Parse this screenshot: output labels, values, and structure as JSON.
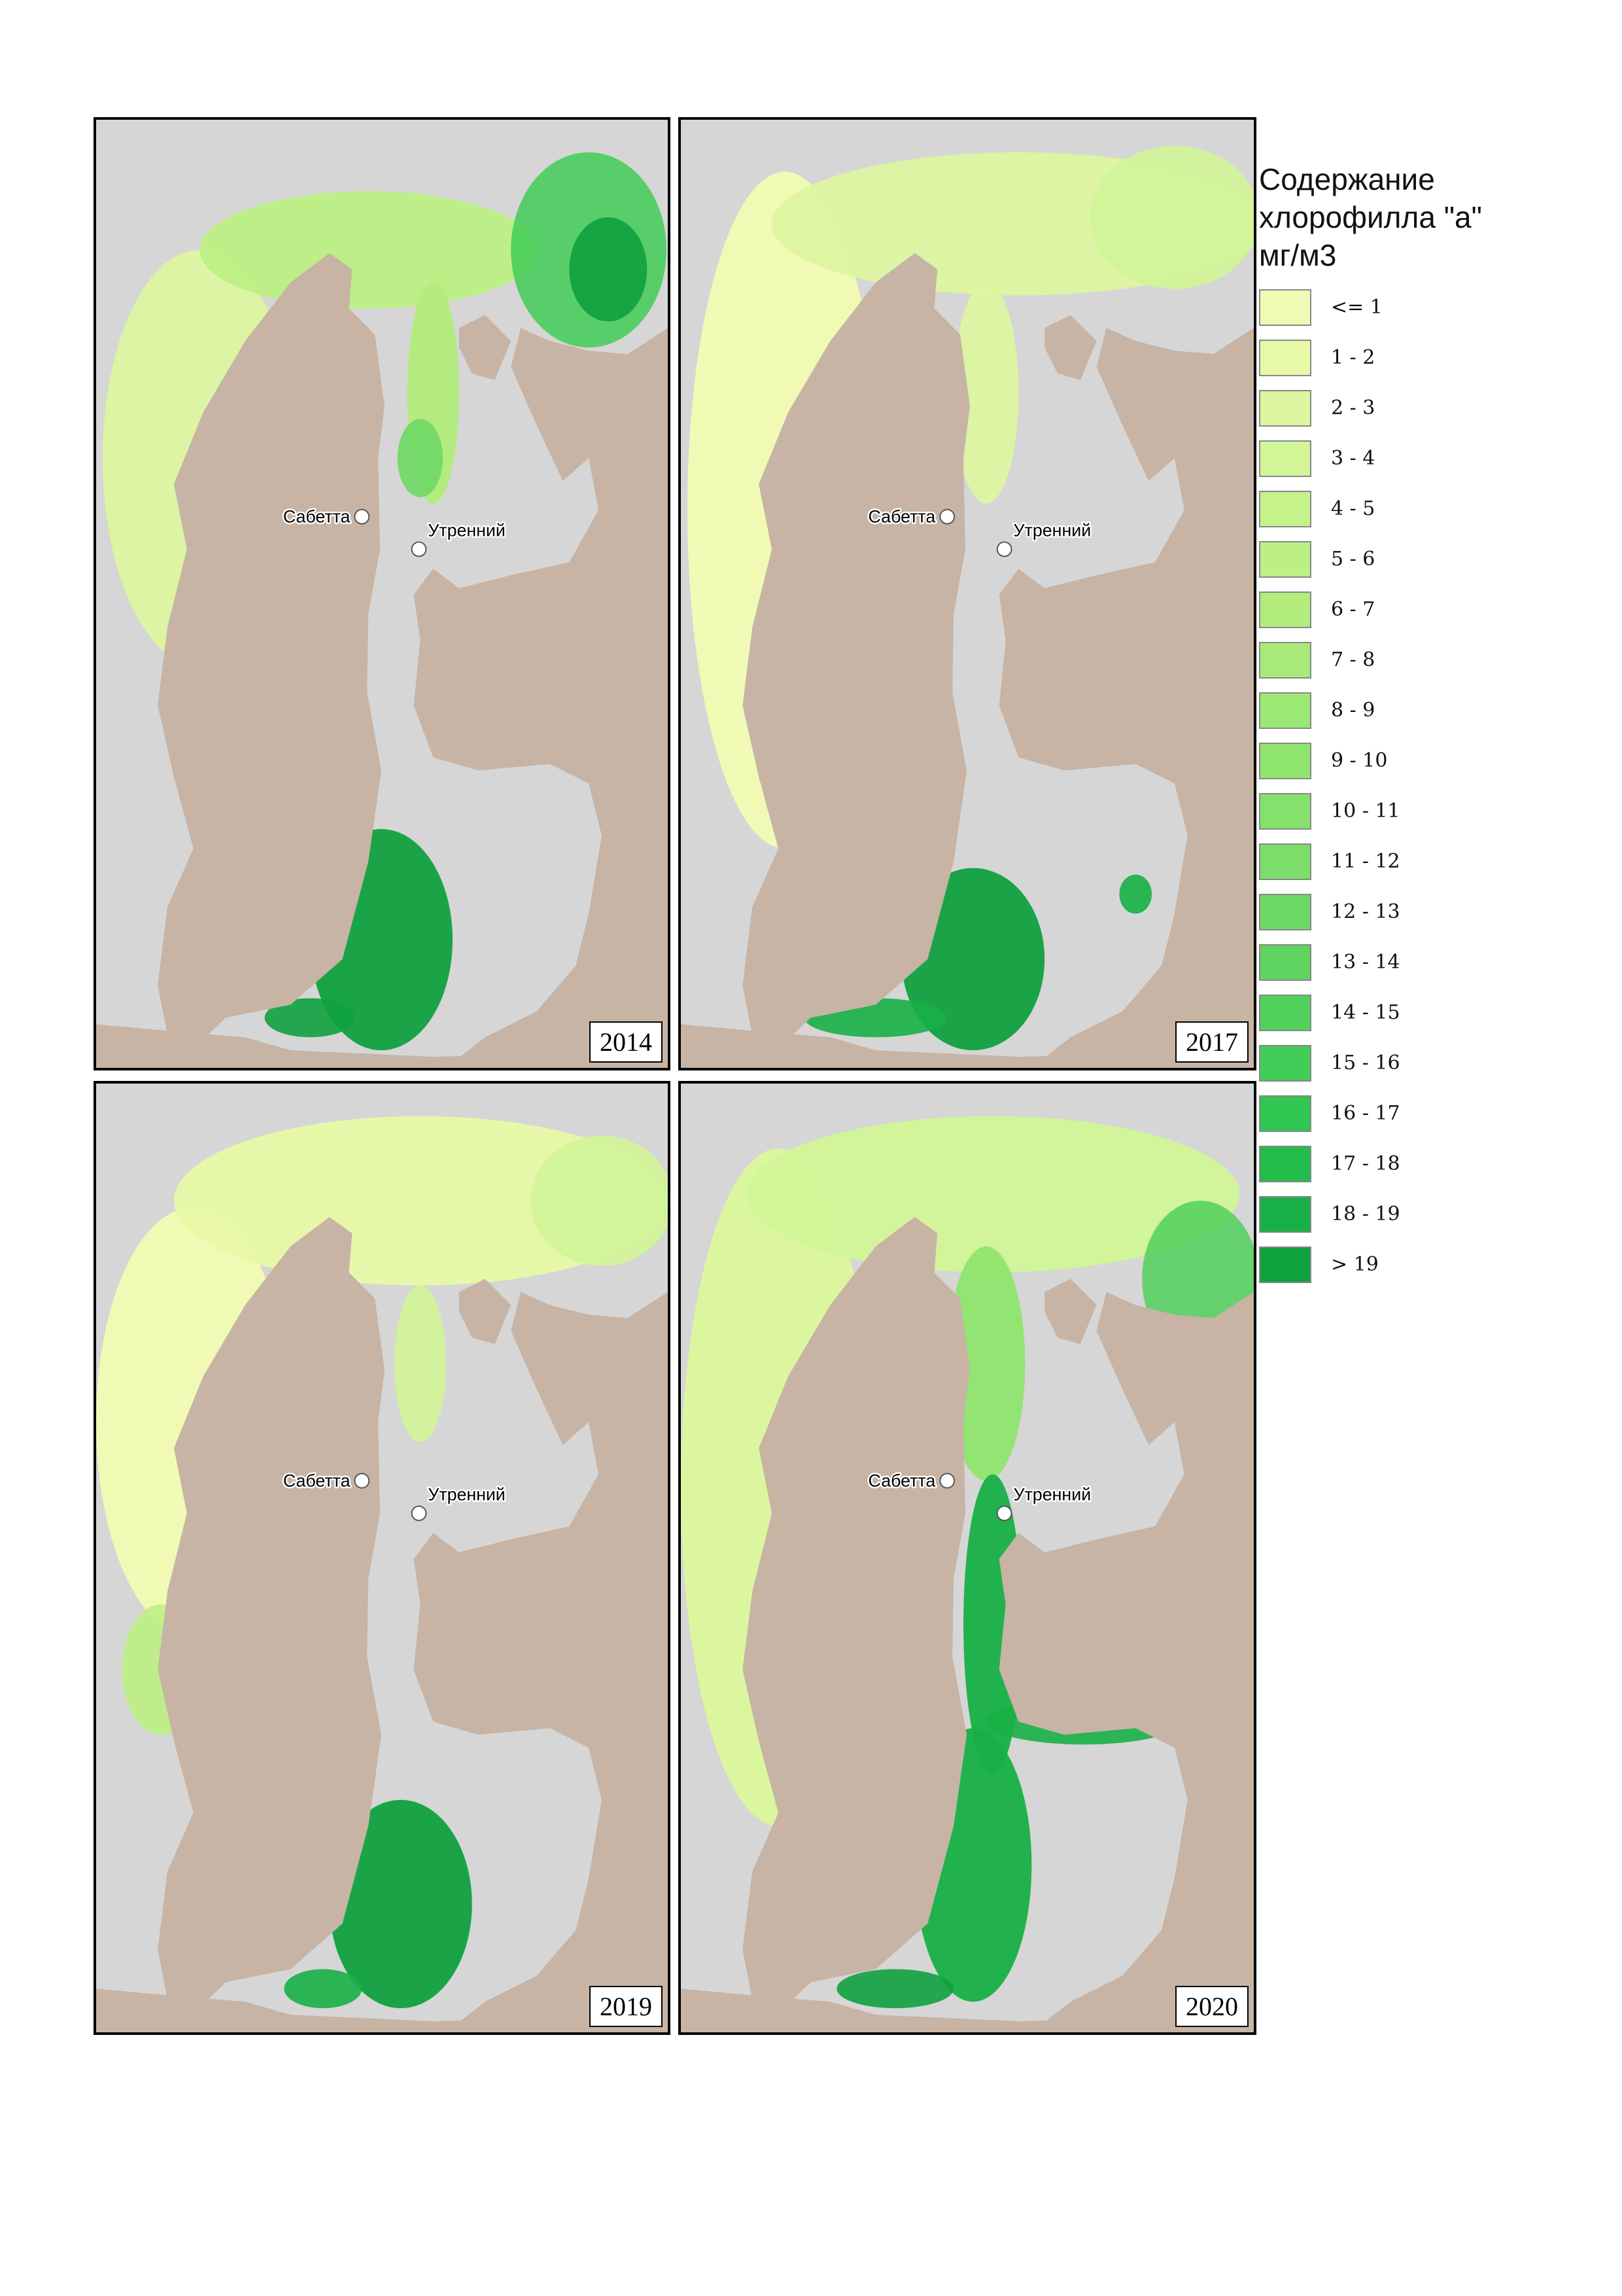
{
  "panels": [
    {
      "year": "2014"
    },
    {
      "year": "2017"
    },
    {
      "year": "2019"
    },
    {
      "year": "2020"
    }
  ],
  "places": {
    "sabetta": "Сабетта",
    "utrenniy": "Утренний"
  },
  "legend": {
    "title_lines": [
      "Содержание",
      "хлорофилла \"а\"",
      "мг/м3"
    ],
    "classes": [
      {
        "label": "<= 1",
        "color": "#f1fab4"
      },
      {
        "label": "1 - 2",
        "color": "#e8f9a8"
      },
      {
        "label": "2 - 3",
        "color": "#dcf6a0"
      },
      {
        "label": "3 - 4",
        "color": "#d2f598"
      },
      {
        "label": "4 - 5",
        "color": "#c6f28c"
      },
      {
        "label": "5 - 6",
        "color": "#bcef84"
      },
      {
        "label": "6 - 7",
        "color": "#b1ec7c"
      },
      {
        "label": "7 - 8",
        "color": "#a8e97a"
      },
      {
        "label": "8 - 9",
        "color": "#9be875"
      },
      {
        "label": "9 - 10",
        "color": "#90e56f"
      },
      {
        "label": "10 - 11",
        "color": "#85e16c"
      },
      {
        "label": "11 - 12",
        "color": "#7cdd6a"
      },
      {
        "label": "12 - 13",
        "color": "#6ed865"
      },
      {
        "label": "13 - 14",
        "color": "#60d460"
      },
      {
        "label": "14 - 15",
        "color": "#51d05c"
      },
      {
        "label": "15 - 16",
        "color": "#42cc58"
      },
      {
        "label": "16 - 17",
        "color": "#30c651"
      },
      {
        "label": "17 - 18",
        "color": "#22bd4b"
      },
      {
        "label": "18 - 19",
        "color": "#18b046"
      },
      {
        "label": "> 19",
        "color": "#10a13f"
      }
    ]
  },
  "colors": {
    "land": "#c7b4a5",
    "water_nodata": "#d6d6d6",
    "frame": "#000000"
  }
}
